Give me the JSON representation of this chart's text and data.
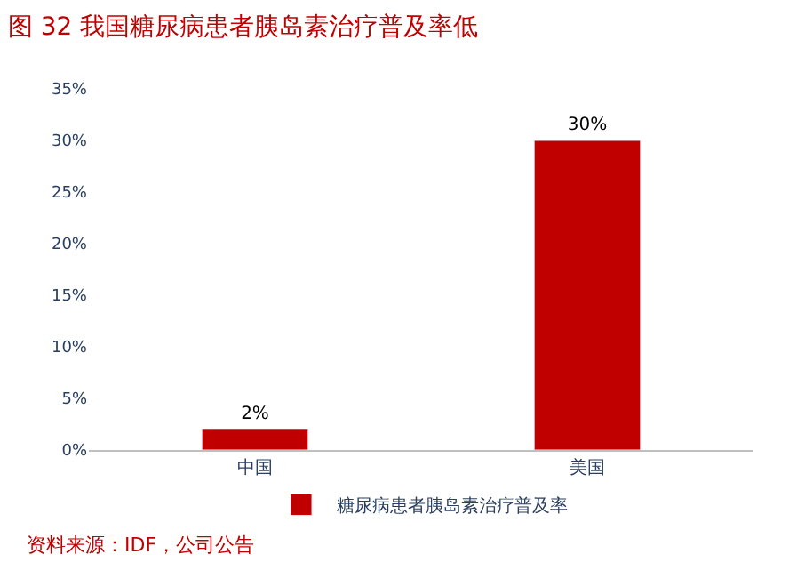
{
  "chart_data": {
    "type": "bar",
    "title": "图 32 我国糖尿病患者胰岛素治疗普及率低",
    "categories": [
      "中国",
      "美国"
    ],
    "series": [
      {
        "name": "糖尿病患者胰岛素治疗普及率",
        "color": "#c00000",
        "values": [
          2,
          30
        ],
        "value_labels": [
          "2%",
          "30%"
        ]
      }
    ],
    "ylim": [
      0,
      35
    ],
    "yticks": [
      {
        "value": 0,
        "label": "0%"
      },
      {
        "value": 5,
        "label": "5%"
      },
      {
        "value": 10,
        "label": "10%"
      },
      {
        "value": 15,
        "label": "15%"
      },
      {
        "value": 20,
        "label": "20%"
      },
      {
        "value": 25,
        "label": "25%"
      },
      {
        "value": 30,
        "label": "30%"
      },
      {
        "value": 35,
        "label": "35%"
      }
    ],
    "legend": "bottom",
    "annotations": [
      "资料来源：IDF，公司公告"
    ]
  }
}
